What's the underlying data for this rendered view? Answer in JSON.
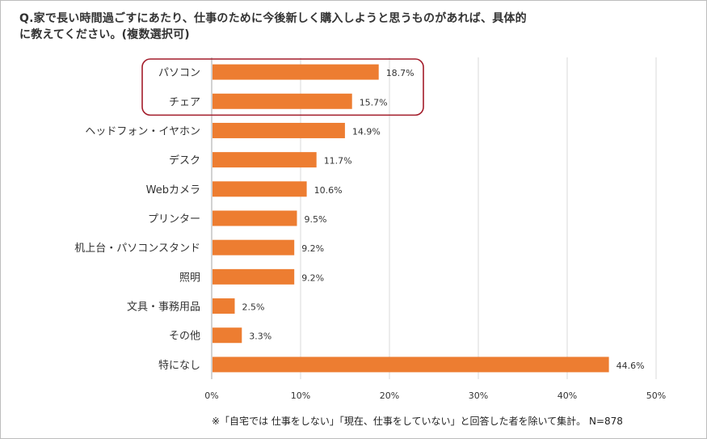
{
  "title": "Q.家で長い時間過ごすにあたり、仕事のために今後新しく購入しようと思うものがあれば、具体的\nに教えてください。(複数選択可)",
  "note": "※「自宅では 仕事をしない」「現在、仕事をしていない」と回答した者を除いて集計。 N=878",
  "colors": {
    "bar": "#ED7D31",
    "grid": "#D9D9D9",
    "highlight": "#A31C2A"
  },
  "chart_data": {
    "type": "bar",
    "orientation": "horizontal",
    "categories": [
      "パソコン",
      "チェア",
      "ヘッドフォン・イヤホン",
      "デスク",
      "Webカメラ",
      "プリンター",
      "机上台・パソコンスタンド",
      "照明",
      "文具・事務用品",
      "その他",
      "特になし"
    ],
    "values": [
      18.7,
      15.7,
      14.9,
      11.7,
      10.6,
      9.5,
      9.2,
      9.2,
      2.5,
      3.3,
      44.6
    ],
    "value_labels": [
      "18.7%",
      "15.7%",
      "14.9%",
      "11.7%",
      "10.6%",
      "9.5%",
      "9.2%",
      "9.2%",
      "2.5%",
      "3.3%",
      "44.6%"
    ],
    "xlim": [
      0,
      50
    ],
    "xticks": [
      0,
      10,
      20,
      30,
      40,
      50
    ],
    "xtick_labels": [
      "0%",
      "10%",
      "20%",
      "30%",
      "40%",
      "50%"
    ],
    "grid": true,
    "legend": "none",
    "highlighted_categories": [
      "パソコン",
      "チェア"
    ]
  }
}
